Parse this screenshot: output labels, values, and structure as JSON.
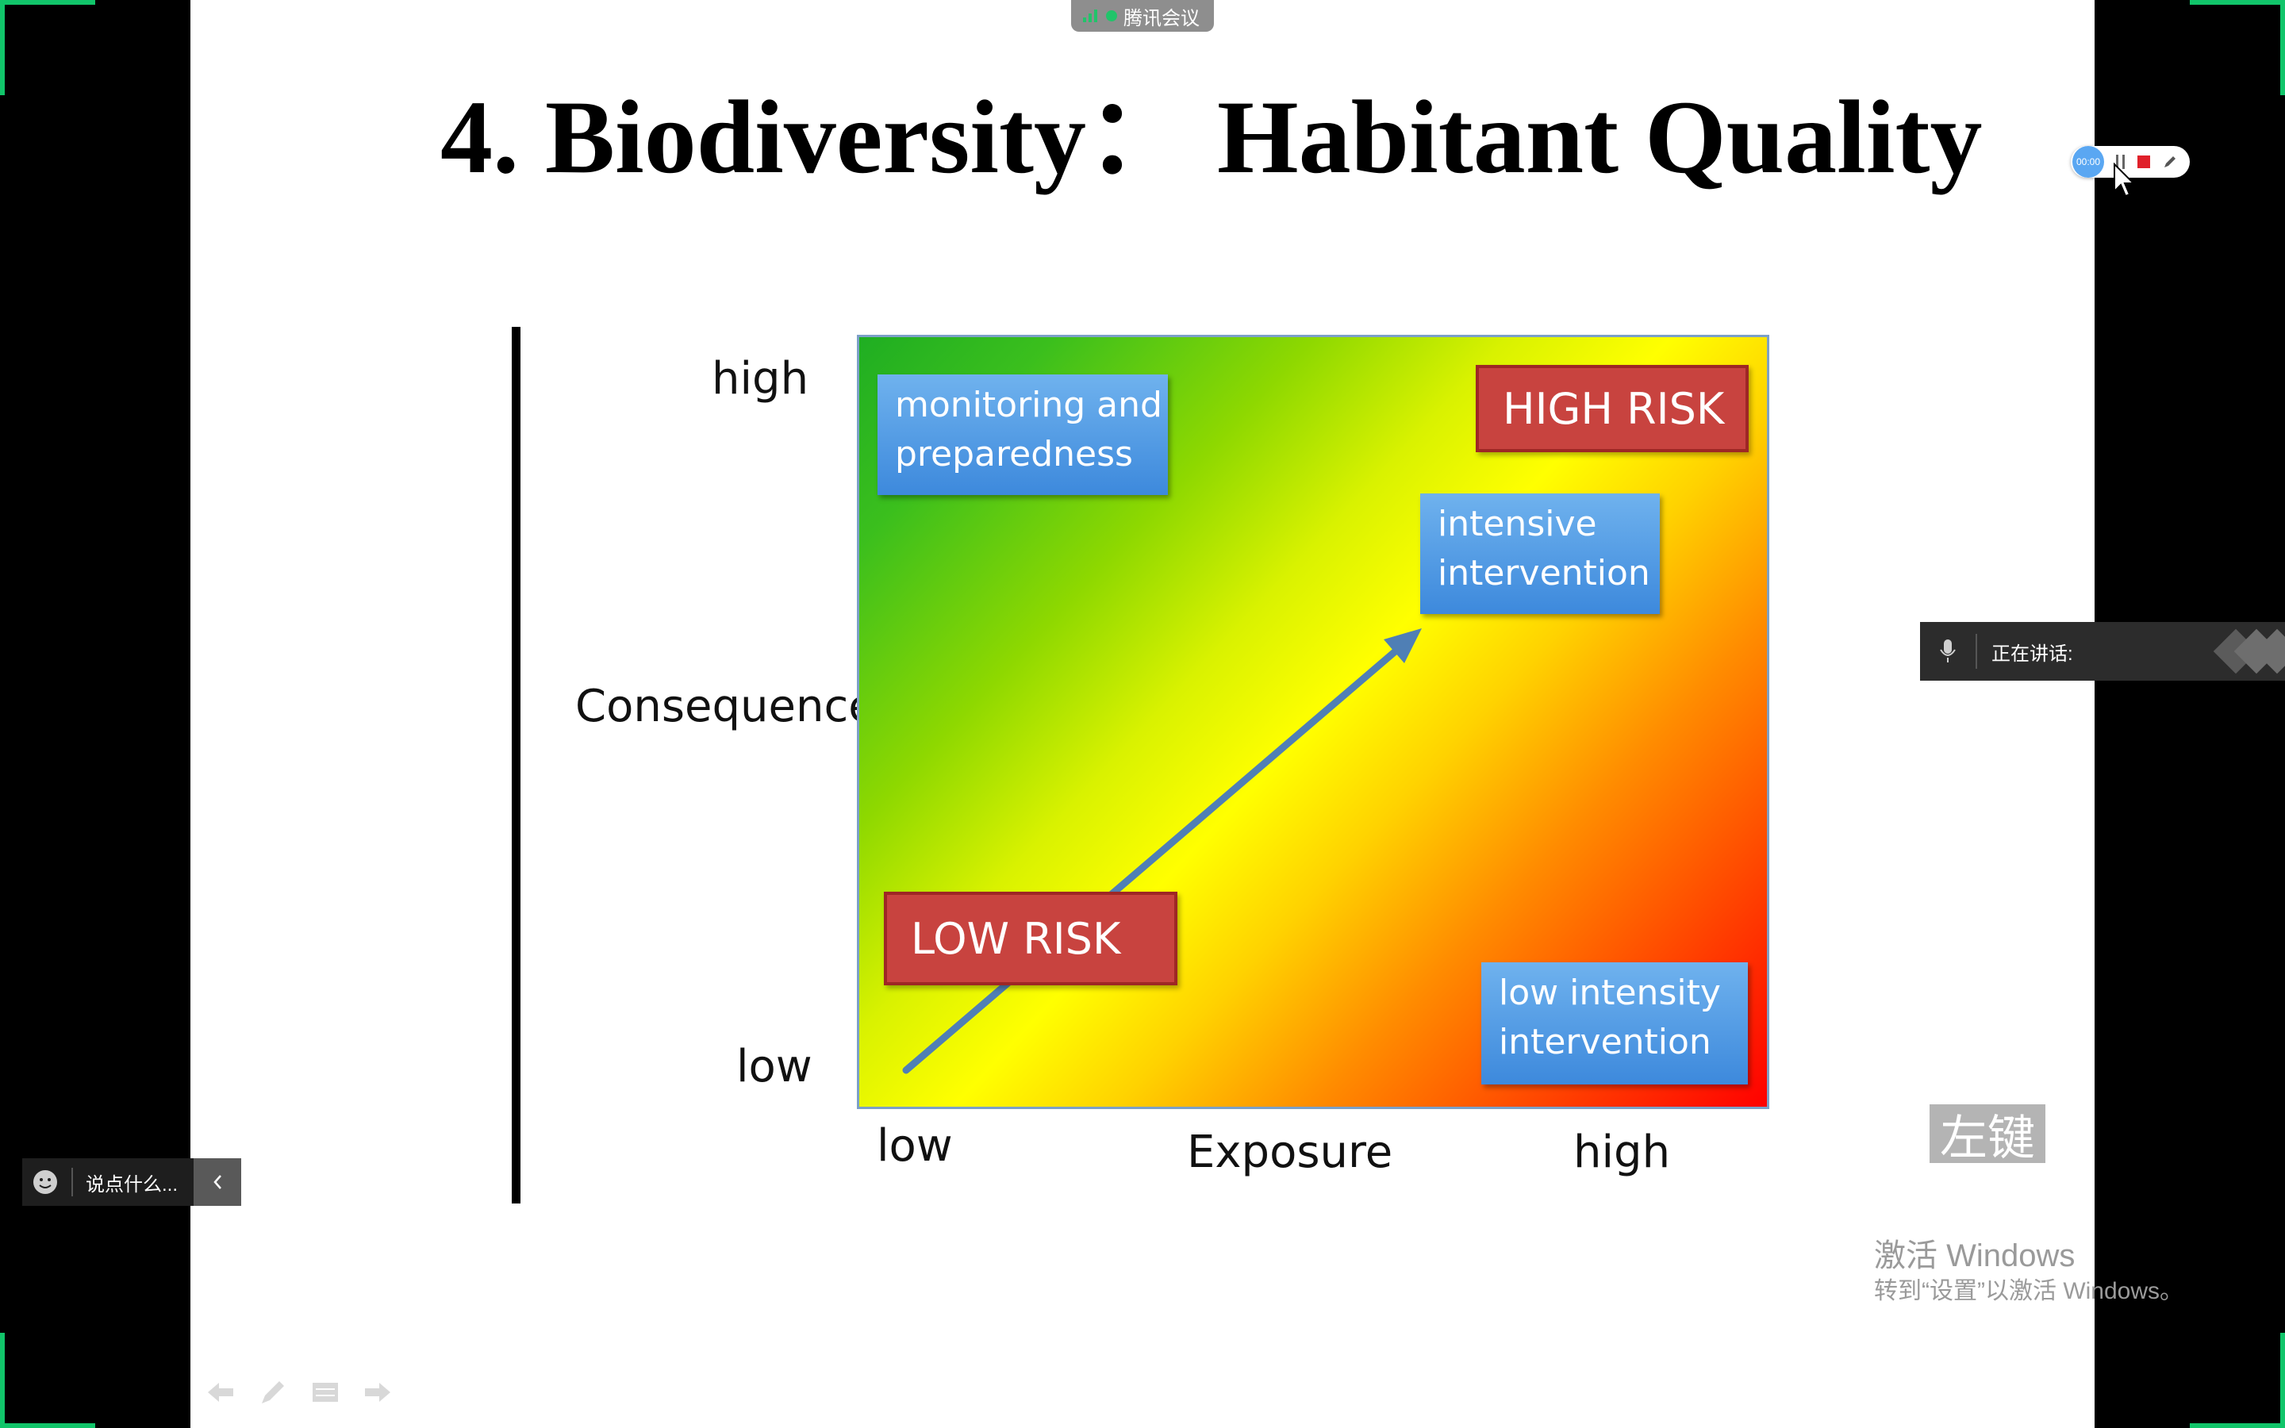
{
  "meeting_bar": {
    "app_name": "腾讯会议"
  },
  "slide": {
    "title": "4. Biodiversity：  Habitant Quality",
    "matrix": {
      "y_axis": {
        "title": "Consequence",
        "high": "high",
        "low": "low"
      },
      "x_axis": {
        "title": "Exposure",
        "low": "low",
        "high": "high"
      },
      "boxes": {
        "monitoring": {
          "line1": "monitoring and",
          "line2": "preparedness"
        },
        "high_risk": "HIGH RISK",
        "intensive": {
          "line1": "intensive",
          "line2": "intervention"
        },
        "low_risk": "LOW RISK",
        "low_intensity": {
          "line1": "low intensity",
          "line2": "intervention"
        }
      }
    },
    "key_label": "左键"
  },
  "recording": {
    "timer": "00:00"
  },
  "speaking": {
    "label": "正在讲话:"
  },
  "chat": {
    "placeholder": "说点什么..."
  },
  "watermark": {
    "line1": "激活 Windows",
    "line2": "转到“设置”以激活 Windows。"
  },
  "colors": {
    "corner_marker": "#11c56a",
    "blue_box": "#4a90e2",
    "red_box": "#c8433f"
  }
}
